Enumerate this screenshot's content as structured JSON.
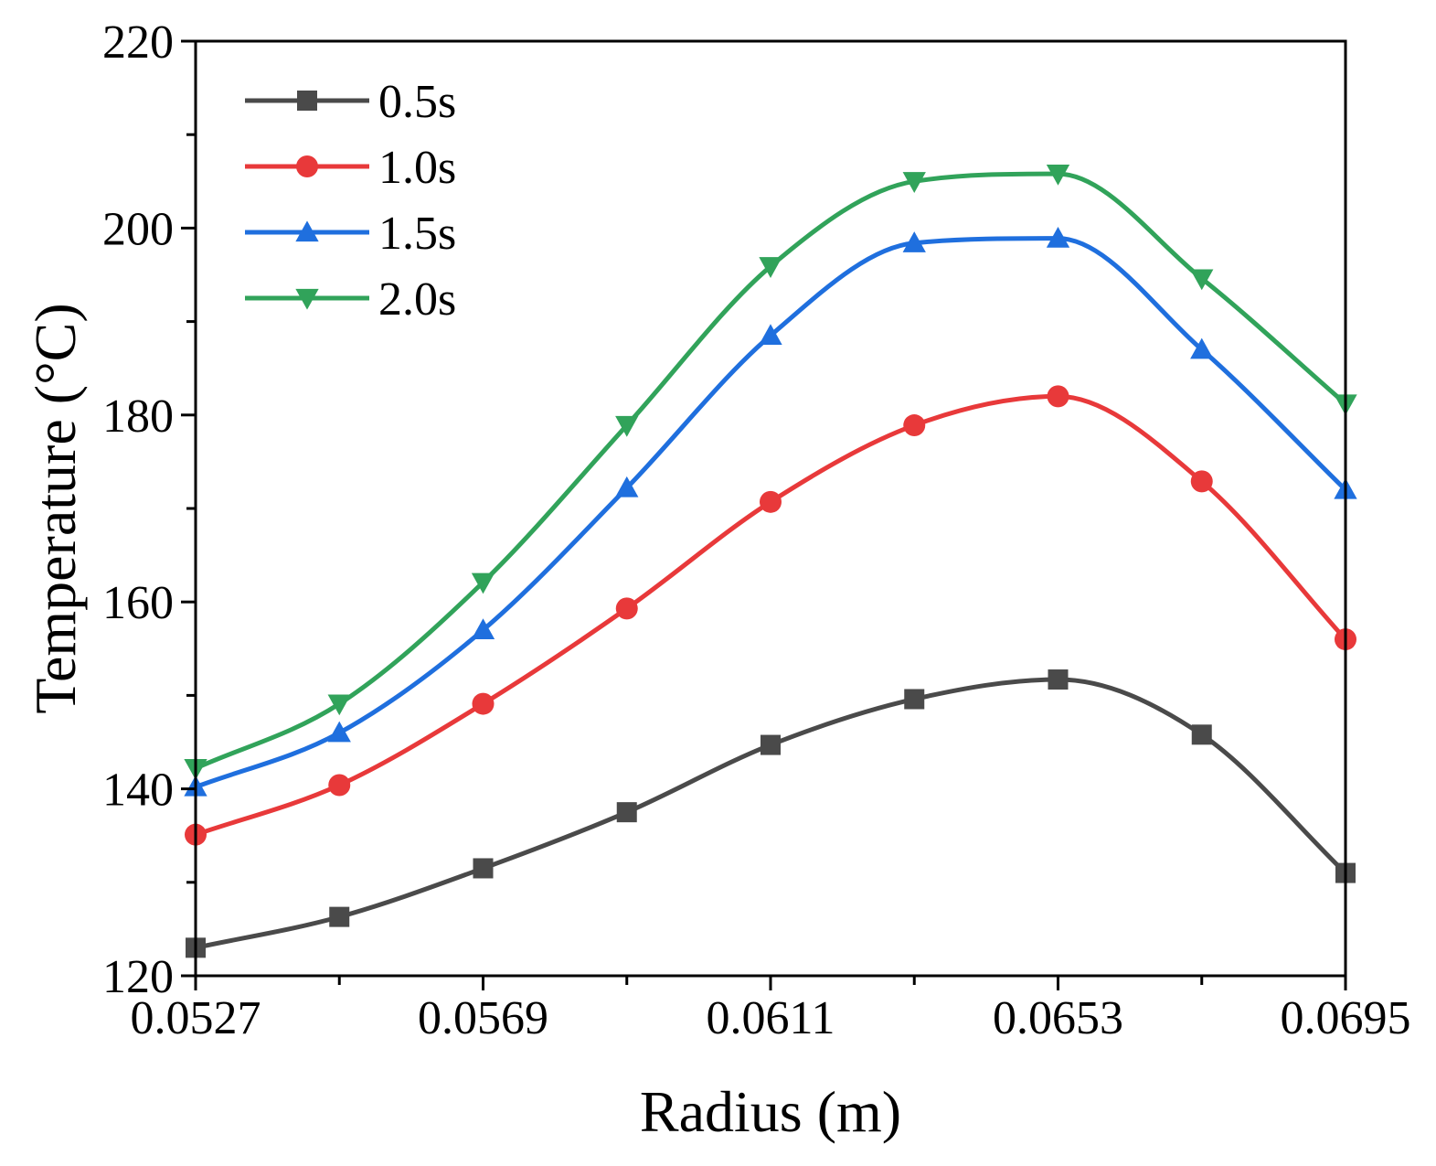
{
  "chart_data": {
    "type": "line",
    "title": "",
    "xlabel": "Radius (m)",
    "ylabel": "Temperature (°C)",
    "x": [
      0.0527,
      0.0548,
      0.0569,
      0.059,
      0.0611,
      0.0632,
      0.0653,
      0.0674,
      0.0695
    ],
    "xlim": [
      0.0527,
      0.0695
    ],
    "ylim": [
      120,
      220
    ],
    "x_tick_labels": [
      "0.0527",
      "0.0569",
      "0.0611",
      "0.0653",
      "0.0695"
    ],
    "y_tick_labels": [
      "120",
      "140",
      "160",
      "180",
      "200",
      "220"
    ],
    "grid": false,
    "legend_position": "top-left",
    "series": [
      {
        "name": "0.5s",
        "color": "#4a4a4a",
        "marker": "square",
        "values": [
          123.0,
          126.3,
          131.5,
          137.5,
          144.7,
          149.6,
          151.7,
          145.8,
          131.0
        ]
      },
      {
        "name": "1.0s",
        "color": "#e8393a",
        "marker": "circle",
        "values": [
          135.1,
          140.4,
          149.1,
          159.3,
          170.7,
          178.9,
          182.0,
          172.9,
          156.0
        ]
      },
      {
        "name": "1.5s",
        "color": "#1f6fde",
        "marker": "triangle-up",
        "values": [
          140.2,
          146.0,
          157.0,
          172.2,
          188.5,
          198.4,
          198.9,
          187.0,
          172.0
        ]
      },
      {
        "name": "2.0s",
        "color": "#31a35a",
        "marker": "triangle-down",
        "values": [
          142.2,
          149.1,
          162.1,
          178.9,
          195.9,
          205.0,
          205.8,
          194.6,
          181.2
        ]
      }
    ]
  }
}
